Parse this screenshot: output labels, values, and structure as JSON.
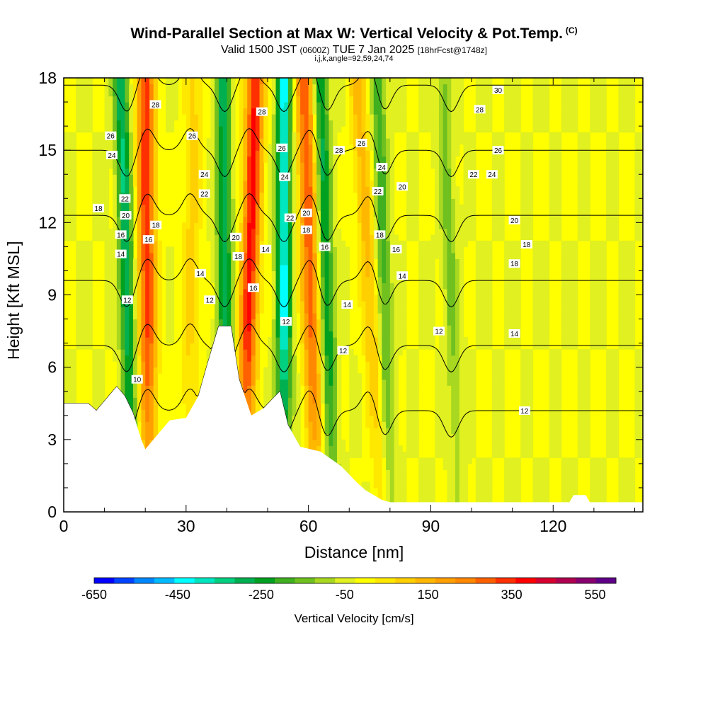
{
  "chart_data": {
    "type": "heatmap",
    "title": "Wind-Parallel Section at Max W: Vertical Velocity & Pot.Temp.",
    "title_mark": "(C)",
    "subtitle_main": "Valid 1500 JST",
    "subtitle_utc": "(0600Z)",
    "subtitle_date": "TUE 7 Jan 2025",
    "subtitle_fcst": "[18hrFcst@1748z]",
    "subsubtitle": "i,j,k,angle=92,59,24,74",
    "xlabel": "Distance [nm]",
    "ylabel": "Height [Kft MSL]",
    "xlim": [
      0,
      142
    ],
    "ylim": [
      0,
      18
    ],
    "x_ticks": [
      0,
      30,
      60,
      90,
      120
    ],
    "y_ticks": [
      0,
      3,
      6,
      9,
      12,
      15,
      18
    ],
    "colorbar": {
      "label": "Vertical Velocity [cm/s]",
      "ticks": [
        -650,
        -450,
        -250,
        -50,
        150,
        350,
        550
      ],
      "bins": [
        -650,
        -600,
        -550,
        -500,
        -450,
        -400,
        -350,
        -300,
        -250,
        -200,
        -150,
        -100,
        -50,
        0,
        50,
        100,
        150,
        200,
        250,
        300,
        350,
        400,
        450,
        500,
        550,
        600
      ],
      "colors": [
        "#0000ff",
        "#0044ff",
        "#0088ff",
        "#00bbff",
        "#00ffff",
        "#00e6c0",
        "#00d080",
        "#00b050",
        "#00a020",
        "#40b020",
        "#70c020",
        "#a8d820",
        "#e0f020",
        "#ffff00",
        "#ffe800",
        "#ffd000",
        "#ffb800",
        "#ffa000",
        "#ff8800",
        "#ff6000",
        "#ff3000",
        "#ff0000",
        "#d80030",
        "#b00050",
        "#880070",
        "#600088"
      ]
    },
    "terrain_kft": [
      [
        0,
        4.5
      ],
      [
        6,
        4.5
      ],
      [
        8,
        4.2
      ],
      [
        13,
        5.2
      ],
      [
        15,
        4.8
      ],
      [
        17,
        4.1
      ],
      [
        19,
        3.0
      ],
      [
        20,
        2.6
      ],
      [
        23,
        3.2
      ],
      [
        26,
        3.8
      ],
      [
        30,
        3.9
      ],
      [
        33,
        4.8
      ],
      [
        35,
        6.0
      ],
      [
        38,
        7.7
      ],
      [
        41,
        7.7
      ],
      [
        43,
        5.5
      ],
      [
        46,
        4.0
      ],
      [
        49,
        4.3
      ],
      [
        53,
        5.0
      ],
      [
        55,
        3.6
      ],
      [
        58,
        2.7
      ],
      [
        63,
        2.5
      ],
      [
        68,
        1.9
      ],
      [
        72,
        1.2
      ],
      [
        74,
        0.9
      ],
      [
        78,
        0.5
      ],
      [
        80,
        0.4
      ],
      [
        86,
        0.4
      ],
      [
        100,
        0.4
      ],
      [
        120,
        0.4
      ],
      [
        124,
        0.4
      ],
      [
        125,
        0.7
      ],
      [
        128,
        0.7
      ],
      [
        129,
        0.4
      ],
      [
        142,
        0.4
      ]
    ],
    "updraft_bands": [
      {
        "x_bottom": 21,
        "x_top": 20,
        "w_max": 380
      },
      {
        "x_bottom": 44,
        "x_top": 47,
        "w_max": 420
      },
      {
        "x_bottom": 62,
        "x_top": 59,
        "w_max": 330
      },
      {
        "x_bottom": 78,
        "x_top": 72,
        "w_max": 170
      },
      {
        "x_bottom": 30,
        "x_top": 32,
        "w_max": 120
      }
    ],
    "downdraft_bands": [
      {
        "x_bottom": 17,
        "x_top": 14,
        "w_min": -300
      },
      {
        "x_bottom": 40,
        "x_top": 39,
        "w_min": -280
      },
      {
        "x_bottom": 54,
        "x_top": 54,
        "w_min": -420
      },
      {
        "x_bottom": 66,
        "x_top": 63,
        "w_min": -260
      },
      {
        "x_bottom": 80,
        "x_top": 77,
        "w_min": -180
      },
      {
        "x_bottom": 97,
        "x_top": 93,
        "w_min": -120
      }
    ],
    "theta_contours": {
      "units": "C",
      "levels": [
        10,
        12,
        14,
        16,
        18,
        20,
        22,
        24,
        26,
        28,
        30
      ],
      "labels": [
        {
          "text": "28",
          "x": 22.5,
          "y": 16.9
        },
        {
          "text": "26",
          "x": 11.5,
          "y": 15.6
        },
        {
          "text": "24",
          "x": 11.8,
          "y": 14.8
        },
        {
          "text": "18",
          "x": 8.5,
          "y": 12.6
        },
        {
          "text": "22",
          "x": 15.0,
          "y": 13.0
        },
        {
          "text": "20",
          "x": 15.2,
          "y": 12.3
        },
        {
          "text": "16",
          "x": 14.0,
          "y": 11.5
        },
        {
          "text": "14",
          "x": 14.0,
          "y": 10.7
        },
        {
          "text": "12",
          "x": 15.6,
          "y": 8.8
        },
        {
          "text": "10",
          "x": 18.0,
          "y": 5.5
        },
        {
          "text": "16",
          "x": 20.8,
          "y": 11.3
        },
        {
          "text": "18",
          "x": 22.6,
          "y": 11.9
        },
        {
          "text": "26",
          "x": 31.5,
          "y": 15.6
        },
        {
          "text": "24",
          "x": 34.5,
          "y": 14.0
        },
        {
          "text": "22",
          "x": 34.5,
          "y": 13.2
        },
        {
          "text": "14",
          "x": 33.5,
          "y": 9.9
        },
        {
          "text": "12",
          "x": 35.8,
          "y": 8.8
        },
        {
          "text": "20",
          "x": 42.2,
          "y": 11.4
        },
        {
          "text": "18",
          "x": 42.8,
          "y": 10.6
        },
        {
          "text": "16",
          "x": 46.5,
          "y": 9.3
        },
        {
          "text": "14",
          "x": 49.5,
          "y": 10.9
        },
        {
          "text": "28",
          "x": 48.6,
          "y": 16.6
        },
        {
          "text": "26",
          "x": 53.5,
          "y": 15.1
        },
        {
          "text": "24",
          "x": 54.2,
          "y": 13.9
        },
        {
          "text": "22",
          "x": 55.5,
          "y": 12.2
        },
        {
          "text": "20",
          "x": 59.5,
          "y": 12.4
        },
        {
          "text": "18",
          "x": 59.5,
          "y": 11.7
        },
        {
          "text": "16",
          "x": 64.0,
          "y": 11.0
        },
        {
          "text": "12",
          "x": 54.5,
          "y": 7.9
        },
        {
          "text": "14",
          "x": 69.5,
          "y": 8.6
        },
        {
          "text": "12",
          "x": 68.5,
          "y": 6.7
        },
        {
          "text": "28",
          "x": 67.5,
          "y": 15.0
        },
        {
          "text": "26",
          "x": 73.0,
          "y": 15.3
        },
        {
          "text": "24",
          "x": 78.0,
          "y": 14.3
        },
        {
          "text": "22",
          "x": 77.0,
          "y": 13.3
        },
        {
          "text": "20",
          "x": 83.0,
          "y": 13.5
        },
        {
          "text": "18",
          "x": 77.5,
          "y": 11.5
        },
        {
          "text": "16",
          "x": 81.5,
          "y": 10.9
        },
        {
          "text": "14",
          "x": 83.0,
          "y": 9.8
        },
        {
          "text": "12",
          "x": 92.0,
          "y": 7.5
        },
        {
          "text": "30",
          "x": 106.5,
          "y": 17.5
        },
        {
          "text": "28",
          "x": 102.0,
          "y": 16.7
        },
        {
          "text": "26",
          "x": 106.5,
          "y": 15.0
        },
        {
          "text": "24",
          "x": 105.0,
          "y": 14.0
        },
        {
          "text": "22",
          "x": 100.5,
          "y": 14.0
        },
        {
          "text": "20",
          "x": 110.5,
          "y": 12.1
        },
        {
          "text": "18",
          "x": 113.5,
          "y": 11.1
        },
        {
          "text": "18",
          "x": 110.5,
          "y": 10.3
        },
        {
          "text": "14",
          "x": 110.5,
          "y": 7.4
        },
        {
          "text": "12",
          "x": 113.0,
          "y": 4.2
        }
      ]
    }
  }
}
